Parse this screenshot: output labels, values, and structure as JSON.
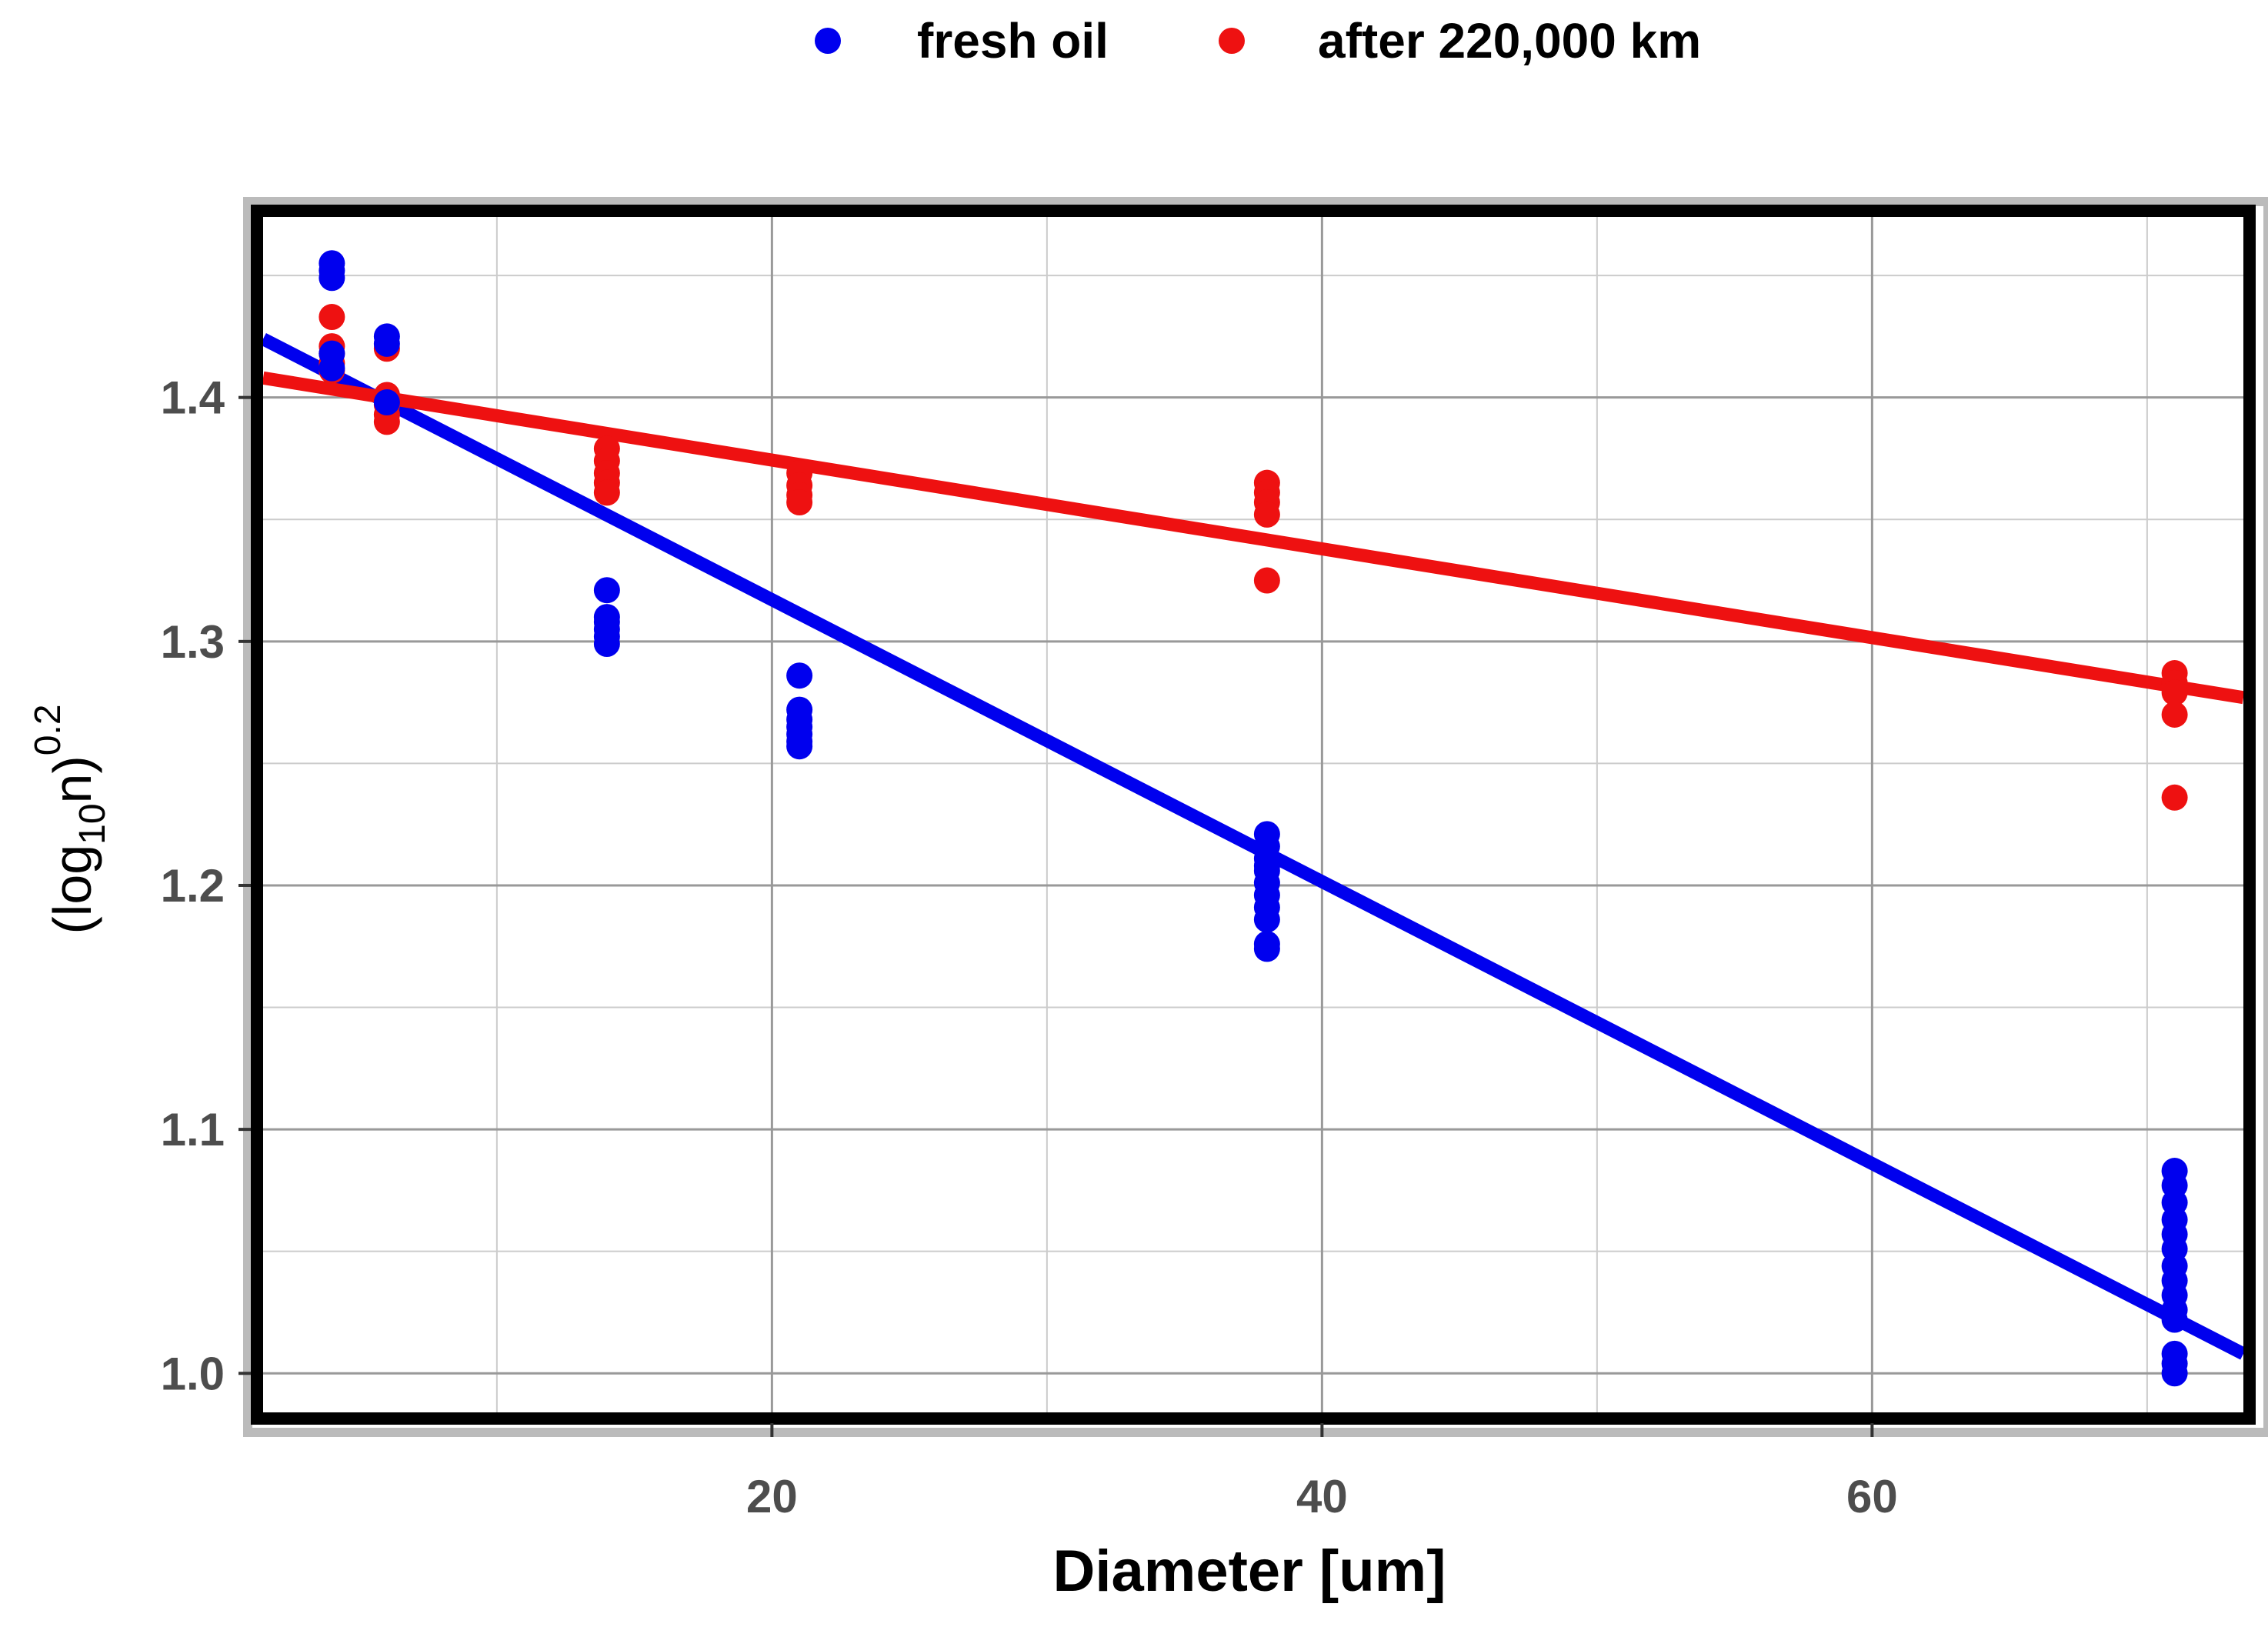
{
  "chart_data": {
    "type": "scatter",
    "title": "",
    "xlabel": "Diameter [um]",
    "ylabel": {
      "base": "(log",
      "subscript": "10",
      "mid": "n)",
      "superscript": "0.2"
    },
    "xlim": [
      1.5,
      73.5
    ],
    "ylim": [
      0.984,
      1.474
    ],
    "x_ticks_major": [
      20,
      40,
      60
    ],
    "x_ticks_minor": [
      10,
      30,
      50,
      70
    ],
    "y_ticks_major": [
      1.0,
      1.1,
      1.2,
      1.3,
      1.4
    ],
    "y_ticks_minor": [
      1.05,
      1.15,
      1.25,
      1.35,
      1.45
    ],
    "y_tick_labels": [
      "1.0",
      "1.1",
      "1.2",
      "1.3",
      "1.4"
    ],
    "grid": true,
    "legend_position": "top",
    "colors": {
      "fresh": "#0000ee",
      "aged": "#ee1111",
      "grid": "#999999",
      "frame": "#000000"
    },
    "series": [
      {
        "name": "fresh oil",
        "color": "#0000ee",
        "x": [
          4,
          4,
          4,
          4,
          4,
          6,
          6,
          6,
          14,
          14,
          14,
          14,
          14,
          14,
          21,
          21,
          21,
          21,
          21,
          21,
          21,
          38,
          38,
          38,
          38,
          38,
          38,
          38,
          38,
          38,
          38,
          38,
          71,
          71,
          71,
          71,
          71,
          71,
          71,
          71,
          71,
          71,
          71,
          71,
          71,
          71
        ],
        "y": [
          1.455,
          1.452,
          1.449,
          1.418,
          1.412,
          1.425,
          1.422,
          1.398,
          1.321,
          1.308,
          1.305,
          1.302,
          1.299,
          1.31,
          1.286,
          1.272,
          1.268,
          1.265,
          1.262,
          1.259,
          1.257,
          1.221,
          1.216,
          1.211,
          1.206,
          1.201,
          1.196,
          1.191,
          1.186,
          1.176,
          1.174,
          1.208,
          1.083,
          1.077,
          1.07,
          1.063,
          1.057,
          1.051,
          1.044,
          1.038,
          1.032,
          1.026,
          1.022,
          1.008,
          1.004,
          1.0
        ],
        "fit": {
          "x": [
            1.5,
            73.5
          ],
          "y": [
            1.424,
            1.008
          ]
        }
      },
      {
        "name": "after 220,000 km",
        "color": "#ee1111",
        "x": [
          4,
          4,
          4,
          4,
          4,
          6,
          6,
          6,
          6,
          6,
          14,
          14,
          14,
          14,
          14,
          21,
          21,
          21,
          21,
          38,
          38,
          38,
          38,
          38,
          71,
          71,
          71,
          71,
          71
        ],
        "y": [
          1.433,
          1.421,
          1.418,
          1.414,
          1.411,
          1.42,
          1.401,
          1.397,
          1.393,
          1.39,
          1.379,
          1.374,
          1.369,
          1.365,
          1.361,
          1.369,
          1.364,
          1.36,
          1.357,
          1.365,
          1.361,
          1.357,
          1.352,
          1.325,
          1.287,
          1.283,
          1.279,
          1.27,
          1.236
        ],
        "fit": {
          "x": [
            1.5,
            73.5
          ],
          "y": [
            1.408,
            1.277
          ]
        }
      }
    ]
  }
}
